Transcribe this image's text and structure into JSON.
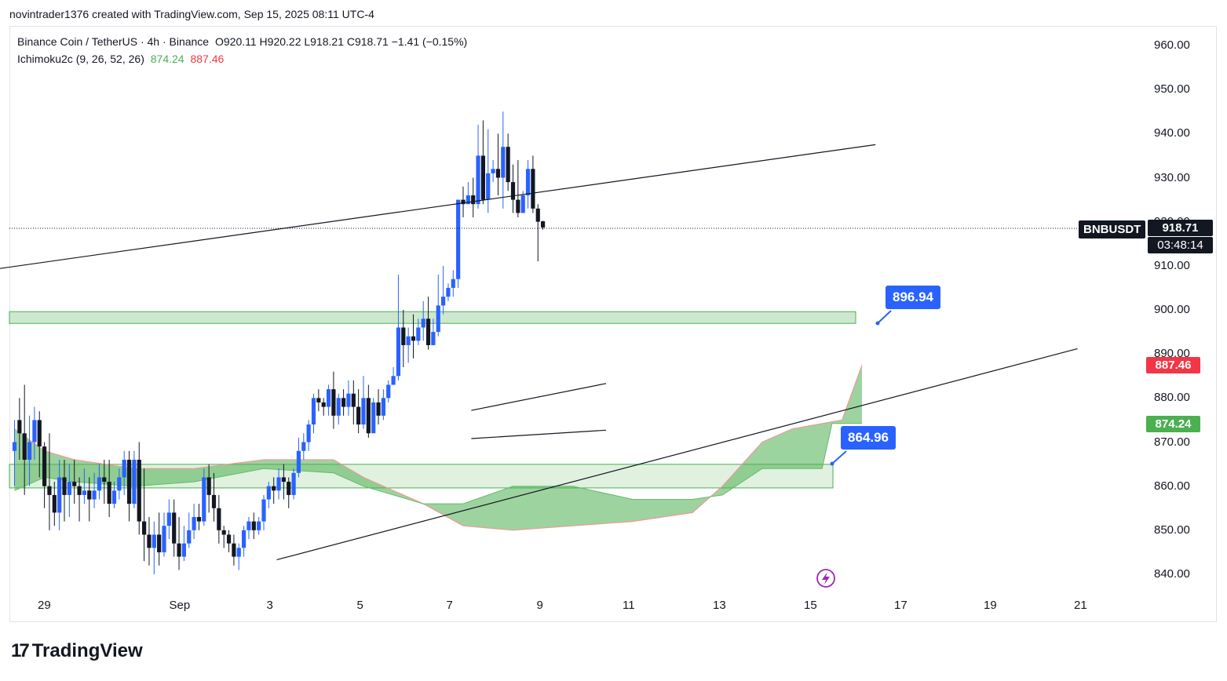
{
  "header": {
    "credit": "novintrader1376 created with TradingView.com, Sep 15, 2025 08:11 UTC-4"
  },
  "legend": {
    "symbol": "Binance Coin / TetherUS · 4h · Binance",
    "ohlc": "O920.11  H920.22  L918.21  C918.71  −1.41 (−0.15%)",
    "indicator_name": "Ichimoku2c (9, 26, 52, 26)",
    "indicator_v1": "874.24",
    "indicator_v2": "887.46"
  },
  "callouts": {
    "upper": "896.94",
    "lower": "864.96"
  },
  "price_scale": {
    "ticker": "BNBUSDT",
    "last_price": "918.71",
    "countdown": "03:48:14",
    "cloud_upper_tag": "887.46",
    "cloud_lower_tag": "874.24",
    "ticks": [
      "960.00",
      "950.00",
      "940.00",
      "930.00",
      "920.00",
      "910.00",
      "900.00",
      "890.00",
      "880.00",
      "870.00",
      "860.00",
      "850.00",
      "840.00"
    ]
  },
  "time_axis": [
    "29",
    "Sep",
    "3",
    "5",
    "7",
    "9",
    "11",
    "13",
    "15",
    "17",
    "19",
    "21"
  ],
  "brand": {
    "name": "TradingView"
  },
  "colors": {
    "up": "#2962ff",
    "down": "#131722",
    "cloud": "#4caf50",
    "zone": "#a5d6a7",
    "tag_red": "#f23645",
    "tag_green": "#4caf50"
  },
  "icons": {
    "flash": "lightning-icon"
  },
  "chart_data": {
    "type": "candlestick",
    "timeframe": "4h",
    "ylim": [
      836,
      966
    ],
    "x_range_days": [
      "2025-08-28",
      "2025-09-21"
    ],
    "zones": [
      {
        "low": 896.94,
        "high": 899.6
      },
      {
        "low": 859.6,
        "high": 864.96
      }
    ],
    "cloud_upper_edge": [
      [
        0,
        873
      ],
      [
        6,
        868
      ],
      [
        12,
        866
      ],
      [
        24,
        864
      ],
      [
        36,
        864
      ],
      [
        50,
        866
      ],
      [
        64,
        866
      ],
      [
        70,
        862
      ],
      [
        82,
        856
      ],
      [
        90,
        851
      ],
      [
        100,
        850
      ],
      [
        112,
        851
      ],
      [
        124,
        852
      ],
      [
        136,
        854
      ],
      [
        142,
        860
      ],
      [
        150,
        870
      ],
      [
        156,
        873
      ],
      [
        162,
        874.2
      ],
      [
        166,
        875
      ],
      [
        170,
        887.46
      ]
    ],
    "cloud_lower_edge": [
      [
        0,
        859
      ],
      [
        6,
        862
      ],
      [
        12,
        861
      ],
      [
        24,
        860
      ],
      [
        36,
        861
      ],
      [
        50,
        864
      ],
      [
        64,
        863
      ],
      [
        70,
        860
      ],
      [
        82,
        856
      ],
      [
        90,
        856
      ],
      [
        100,
        860
      ],
      [
        112,
        860
      ],
      [
        124,
        857
      ],
      [
        136,
        857
      ],
      [
        142,
        858
      ],
      [
        150,
        864
      ],
      [
        156,
        864
      ],
      [
        162,
        864
      ],
      [
        164,
        874.24
      ],
      [
        170,
        874.24
      ]
    ],
    "trendlines": [
      {
        "from": [
          "2025-08-28T00:00",
          909.4
        ],
        "to": [
          "2025-09-16T12:00",
          937.5
        ]
      },
      {
        "from": [
          "2025-09-03T04:00",
          843.3
        ],
        "to": [
          "2025-09-21T00:00",
          891.2
        ]
      },
      {
        "from": [
          "2025-09-07T12:00",
          877.2
        ],
        "to": [
          "2025-09-10T12:00",
          883.3
        ]
      },
      {
        "from": [
          "2025-09-07T12:00",
          870.8
        ],
        "to": [
          "2025-09-10T12:00",
          872.7
        ]
      }
    ],
    "candles": [
      [
        868,
        875,
        870,
        860
      ],
      [
        875,
        880,
        872,
        866
      ],
      [
        872,
        883,
        866,
        858
      ],
      [
        866,
        876,
        870,
        860
      ],
      [
        870,
        878,
        875,
        866
      ],
      [
        875,
        877,
        869,
        862
      ],
      [
        869,
        870,
        860,
        855
      ],
      [
        860,
        872,
        858,
        850
      ],
      [
        858,
        861,
        854,
        851
      ],
      [
        854,
        866,
        862,
        850
      ],
      [
        862,
        866,
        858,
        852
      ],
      [
        858,
        865,
        861,
        853
      ],
      [
        861,
        866,
        860,
        856
      ],
      [
        860,
        862,
        858,
        852
      ],
      [
        858,
        864,
        859,
        856
      ],
      [
        859,
        862,
        857,
        852
      ],
      [
        857,
        863,
        859,
        855
      ],
      [
        859,
        865,
        862,
        857
      ],
      [
        862,
        866,
        861,
        856
      ],
      [
        861,
        866,
        856,
        853
      ],
      [
        856,
        861,
        859,
        855
      ],
      [
        859,
        864,
        862,
        857
      ],
      [
        862,
        868,
        866,
        858
      ],
      [
        866,
        868,
        856,
        852
      ],
      [
        856,
        868,
        866,
        855
      ],
      [
        866,
        870,
        852,
        849
      ],
      [
        852,
        864,
        849,
        843
      ],
      [
        849,
        853,
        846,
        842
      ],
      [
        846,
        852,
        849,
        840
      ],
      [
        849,
        854,
        845,
        842
      ],
      [
        845,
        854,
        851,
        844
      ],
      [
        851,
        857,
        854,
        848
      ],
      [
        854,
        857,
        847,
        844
      ],
      [
        847,
        853,
        844,
        841
      ],
      [
        844,
        851,
        847,
        843
      ],
      [
        847,
        854,
        850,
        846
      ],
      [
        850,
        856,
        853,
        848
      ],
      [
        853,
        856,
        852,
        850
      ],
      [
        852,
        864,
        862,
        851
      ],
      [
        862,
        865,
        858,
        854
      ],
      [
        858,
        863,
        855,
        852
      ],
      [
        855,
        858,
        850,
        847
      ],
      [
        850,
        851,
        849,
        846
      ],
      [
        849,
        850,
        847,
        845
      ],
      [
        847,
        849,
        844,
        842
      ],
      [
        844,
        847,
        846,
        841
      ],
      [
        846,
        851,
        850,
        844
      ],
      [
        850,
        853,
        852,
        848
      ],
      [
        852,
        854,
        850,
        848
      ],
      [
        850,
        853,
        852,
        849
      ],
      [
        852,
        858,
        857,
        850
      ],
      [
        857,
        861,
        860,
        855
      ],
      [
        860,
        862,
        859,
        856
      ],
      [
        859,
        864,
        862,
        857
      ],
      [
        862,
        865,
        861,
        857
      ],
      [
        861,
        862,
        858,
        855
      ],
      [
        858,
        864,
        863,
        857
      ],
      [
        863,
        871,
        868,
        862
      ],
      [
        868,
        872,
        870,
        866
      ],
      [
        870,
        875,
        874,
        868
      ],
      [
        874,
        881,
        880,
        872
      ],
      [
        880,
        882,
        879,
        877
      ],
      [
        879,
        880,
        878,
        876
      ],
      [
        878,
        883,
        882,
        876
      ],
      [
        882,
        886,
        876,
        873
      ],
      [
        876,
        881,
        880,
        874
      ],
      [
        880,
        882,
        878,
        876
      ],
      [
        878,
        884,
        881,
        876
      ],
      [
        881,
        884,
        878,
        874
      ],
      [
        878,
        882,
        874,
        872
      ],
      [
        874,
        885,
        880,
        873
      ],
      [
        880,
        883,
        872,
        871
      ],
      [
        872,
        880,
        879,
        873
      ],
      [
        879,
        882,
        876,
        874
      ],
      [
        876,
        882,
        880,
        875
      ],
      [
        880,
        884,
        883,
        879
      ],
      [
        883,
        887,
        885,
        883
      ],
      [
        885,
        908,
        896,
        884
      ],
      [
        896,
        900,
        892,
        887
      ],
      [
        892,
        896,
        894,
        888
      ],
      [
        894,
        899,
        893,
        889
      ],
      [
        893,
        898,
        896,
        892
      ],
      [
        896,
        902,
        898,
        893
      ],
      [
        898,
        903,
        892,
        891
      ],
      [
        892,
        898,
        895,
        892
      ],
      [
        895,
        908,
        901,
        894
      ],
      [
        901,
        910,
        903,
        899
      ],
      [
        903,
        906,
        905,
        902
      ],
      [
        905,
        909,
        907,
        903
      ],
      [
        907,
        925,
        925,
        905
      ],
      [
        925,
        928,
        924,
        921
      ],
      [
        924,
        929,
        926,
        924
      ],
      [
        926,
        930,
        924,
        921
      ],
      [
        924,
        942,
        935,
        923
      ],
      [
        935,
        943,
        925,
        924
      ],
      [
        925,
        941,
        931,
        922
      ],
      [
        931,
        934,
        932,
        929
      ],
      [
        932,
        940,
        930,
        926
      ],
      [
        930,
        945,
        937,
        923
      ],
      [
        937,
        940,
        929,
        927
      ],
      [
        929,
        933,
        925,
        922
      ],
      [
        925,
        934,
        922,
        921
      ],
      [
        922,
        927,
        926,
        922
      ],
      [
        926,
        934,
        932,
        923
      ],
      [
        932,
        935,
        923,
        922
      ],
      [
        923,
        924,
        920,
        911
      ],
      [
        920.11,
        920.22,
        918.71,
        918.21
      ]
    ]
  }
}
